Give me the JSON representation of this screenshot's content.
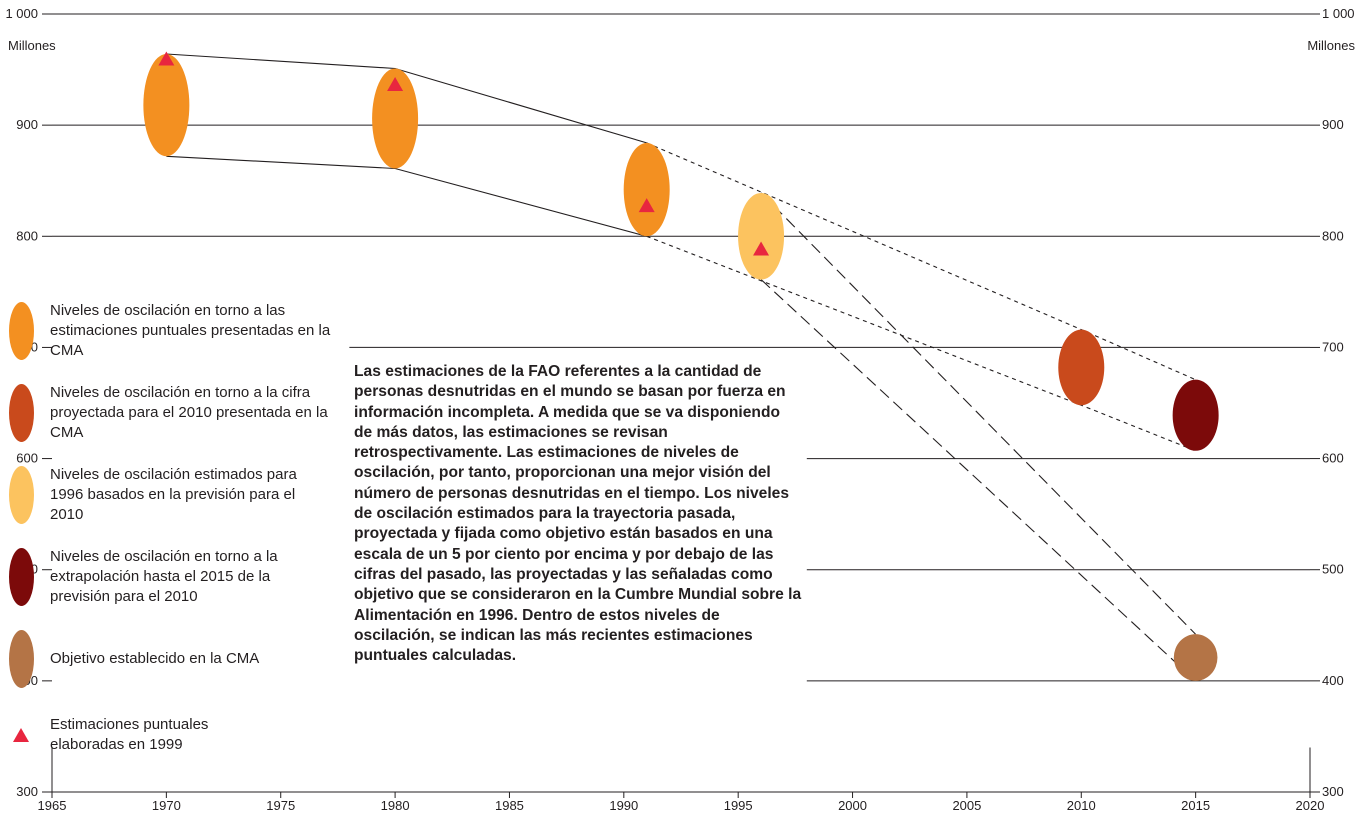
{
  "chart_data": {
    "type": "scatter",
    "y_unit": "Millones",
    "xlim": [
      1965,
      2020
    ],
    "ylim": [
      300,
      1000
    ],
    "x_ticks": [
      1965,
      1970,
      1975,
      1980,
      1985,
      1990,
      1995,
      2000,
      2005,
      2010,
      2015,
      2020
    ],
    "y_ticks": [
      {
        "value": 300,
        "label": "300"
      },
      {
        "value": 400,
        "label": "400"
      },
      {
        "value": 500,
        "label": "500"
      },
      {
        "value": 600,
        "label": "600"
      },
      {
        "value": 700,
        "label": "700"
      },
      {
        "value": 800,
        "label": "800"
      },
      {
        "value": 900,
        "label": "900"
      },
      {
        "value": 1000,
        "label": "1 000"
      }
    ],
    "ranges": [
      {
        "x": 1970,
        "low": 872,
        "high": 964,
        "series": "cma_estimates"
      },
      {
        "x": 1980,
        "low": 861,
        "high": 951,
        "series": "cma_estimates"
      },
      {
        "x": 1991,
        "low": 800,
        "high": 884,
        "series": "cma_estimates"
      },
      {
        "x": 1996,
        "low": 761,
        "high": 839,
        "series": "estimated_1996"
      },
      {
        "x": 2010,
        "low": 648,
        "high": 716,
        "series": "cma_projection_2010"
      },
      {
        "x": 2015,
        "low": 607,
        "high": 671,
        "series": "extrapolation_2015"
      },
      {
        "x": 2015,
        "low": 400,
        "high": 442,
        "series": "cma_target"
      }
    ],
    "point_estimates_1999": [
      {
        "x": 1970,
        "y": 960
      },
      {
        "x": 1980,
        "y": 937
      },
      {
        "x": 1991,
        "y": 828
      },
      {
        "x": 1996,
        "y": 789
      }
    ],
    "trajectories": [
      {
        "style": "solid",
        "points": [
          [
            1970,
            964
          ],
          [
            1980,
            951
          ],
          [
            1991,
            884
          ]
        ]
      },
      {
        "style": "solid",
        "points": [
          [
            1970,
            872
          ],
          [
            1980,
            861
          ],
          [
            1991,
            800
          ]
        ]
      },
      {
        "style": "dotted",
        "points": [
          [
            1991,
            884
          ],
          [
            2010,
            716
          ],
          [
            2015,
            671
          ]
        ]
      },
      {
        "style": "dotted",
        "points": [
          [
            1991,
            800
          ],
          [
            2010,
            648
          ],
          [
            2015,
            607
          ]
        ]
      },
      {
        "style": "dashed",
        "points": [
          [
            1996,
            839
          ],
          [
            2015,
            442
          ]
        ]
      },
      {
        "style": "dashed",
        "points": [
          [
            1996,
            761
          ],
          [
            2015,
            400
          ]
        ]
      }
    ],
    "colors": {
      "cma_estimates": "#f39021",
      "cma_projection_2010": "#c94a1c",
      "estimated_1996": "#fcc35f",
      "extrapolation_2015": "#7c0a0a",
      "cma_target": "#b47446",
      "point_estimate": "#e8263f"
    },
    "legend": [
      {
        "key": "cma_estimates",
        "marker": "ellipse",
        "label": "Niveles de oscilación en torno a las estimaciones puntuales presentadas en la CMA"
      },
      {
        "key": "cma_projection_2010",
        "marker": "ellipse",
        "label": "Niveles de oscilación en torno a la cifra proyectada para el 2010 presentada en la CMA"
      },
      {
        "key": "estimated_1996",
        "marker": "ellipse",
        "label": "Niveles de oscilación estimados para 1996 basados en la previsión para el 2010"
      },
      {
        "key": "extrapolation_2015",
        "marker": "ellipse",
        "label": "Niveles de oscilación en torno a la extrapolación hasta el 2015 de la previsión para el 2010"
      },
      {
        "key": "cma_target",
        "marker": "ellipse",
        "label": "Objetivo establecido en la CMA"
      },
      {
        "key": "point_estimate",
        "marker": "triangle",
        "label": "Estimaciones puntuales elaboradas en 1999"
      }
    ],
    "annotation": "Las estimaciones de la FAO referentes a la cantidad de personas desnutridas en el mundo se basan por fuerza en información incompleta. A medida que se va disponiendo de más datos, las estimaciones se revisan retrospectivamente. Las estimaciones de niveles de oscilación, por tanto, proporcionan una mejor visión del número de personas desnutridas en el tiempo. Los niveles de oscilación estimados para la trayectoria pasada, proyectada y fijada como objetivo están basados en una escala de un 5 por ciento por encima y por debajo de las cifras del pasado, las proyectadas y las señaladas como objetivo que se consideraron en la Cumbre Mundial sobre la Alimentación en 1996. Dentro de estos niveles de oscilación, se indican las más recientes estimaciones puntuales calculadas."
  }
}
